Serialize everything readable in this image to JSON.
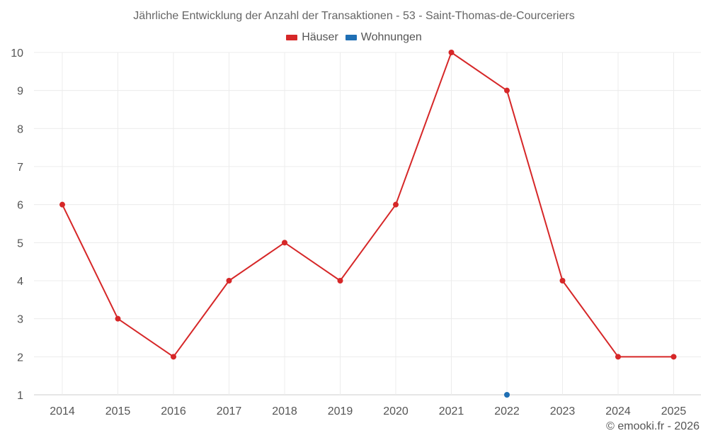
{
  "chart_data": {
    "type": "line",
    "title": "Jährliche Entwicklung der Anzahl der Transaktionen - 53 - Saint-Thomas-de-Courceriers",
    "categories": [
      "2014",
      "2015",
      "2016",
      "2017",
      "2018",
      "2019",
      "2020",
      "2021",
      "2022",
      "2023",
      "2024",
      "2025"
    ],
    "series": [
      {
        "name": "Häuser",
        "color": "#d62728",
        "values": [
          6,
          3,
          2,
          4,
          5,
          4,
          6,
          10,
          9,
          4,
          2,
          2
        ]
      },
      {
        "name": "Wohnungen",
        "color": "#1f6fb4",
        "values": [
          null,
          null,
          null,
          null,
          null,
          null,
          null,
          null,
          1,
          null,
          null,
          null
        ]
      }
    ],
    "ylim": [
      1,
      10
    ],
    "yticks": [
      1,
      2,
      3,
      4,
      5,
      6,
      7,
      8,
      9,
      10
    ],
    "grid": true,
    "legend_position": "top-center"
  },
  "footer": {
    "copyright": "© emooki.fr - 2026"
  }
}
